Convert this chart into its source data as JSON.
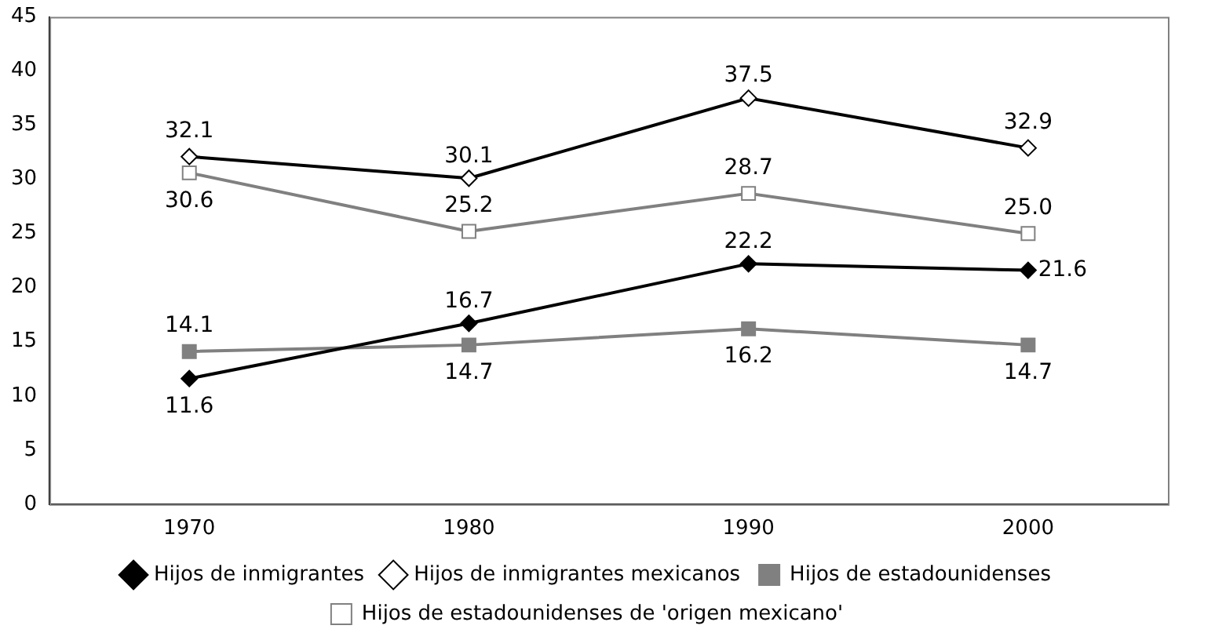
{
  "chart_data": {
    "type": "line",
    "categories": [
      "1970",
      "1980",
      "1990",
      "2000"
    ],
    "ylim": [
      0,
      45
    ],
    "yticks": [
      0,
      5,
      10,
      15,
      20,
      25,
      30,
      35,
      40,
      45
    ],
    "grid": false,
    "legend": "bottom",
    "data_labels": true,
    "series": [
      {
        "name": "Hijos de inmigrantes",
        "color": "#000000",
        "marker": "diamond",
        "values": [
          11.6,
          16.7,
          22.2,
          21.6
        ],
        "value_labels": [
          "11.6",
          "16.7",
          "22.2",
          "21.6"
        ]
      },
      {
        "name": "Hijos de inmigrantes mexicanos",
        "color": "#000000",
        "marker": "diamond",
        "values": [
          32.1,
          30.1,
          37.5,
          32.9
        ],
        "value_labels": [
          "32.1",
          "30.1",
          "37.5",
          "32.9"
        ]
      },
      {
        "name": "Hijos de estadounidenses",
        "color": "#808080",
        "marker": "square",
        "values": [
          14.1,
          14.7,
          16.2,
          14.7
        ],
        "value_labels": [
          "14.1",
          "14.7",
          "16.2",
          "14.7"
        ]
      },
      {
        "name": "Hijos de estadounidenses de 'origen mexicano'",
        "color": "#808080",
        "marker": "square",
        "values": [
          30.6,
          25.2,
          28.7,
          25.0
        ],
        "value_labels": [
          "30.6",
          "25.2",
          "28.7",
          "25.0"
        ]
      }
    ]
  }
}
